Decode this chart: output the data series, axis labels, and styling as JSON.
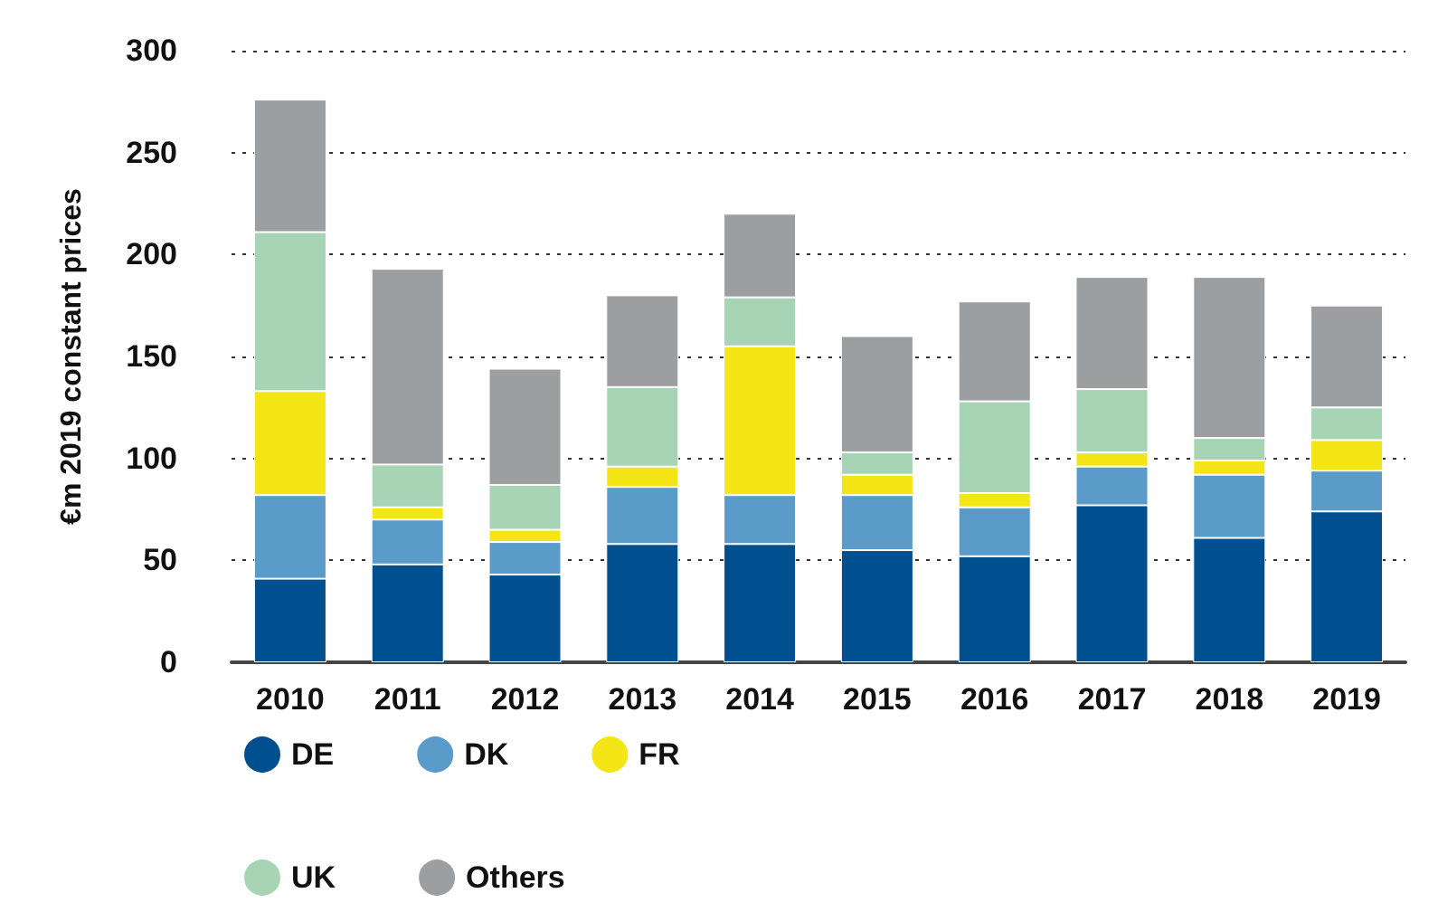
{
  "chart_data": {
    "type": "bar",
    "stacked": true,
    "ylabel": "€m 2019 constant prices",
    "categories": [
      "2010",
      "2011",
      "2012",
      "2013",
      "2014",
      "2015",
      "2016",
      "2017",
      "2018",
      "2019"
    ],
    "series": [
      {
        "name": "DE",
        "color": "#00508f",
        "values": [
          41,
          48,
          43,
          58,
          58,
          55,
          52,
          77,
          61,
          74
        ]
      },
      {
        "name": "DK",
        "color": "#5b9bca",
        "values": [
          41,
          22,
          16,
          28,
          24,
          27,
          24,
          19,
          31,
          20
        ]
      },
      {
        "name": "FR",
        "color": "#f4e616",
        "values": [
          51,
          6,
          6,
          10,
          73,
          10,
          7,
          7,
          7,
          15
        ]
      },
      {
        "name": "UK",
        "color": "#a7d4b4",
        "values": [
          78,
          21,
          22,
          39,
          24,
          11,
          45,
          31,
          11,
          16
        ]
      },
      {
        "name": "Others",
        "color": "#9d9ea0",
        "values": [
          65,
          96,
          57,
          45,
          41,
          57,
          49,
          55,
          79,
          50
        ]
      }
    ],
    "ylim": [
      0,
      300
    ],
    "yticks": [
      0,
      50,
      100,
      150,
      200,
      250,
      300
    ],
    "grid": "y",
    "legend": "bottom"
  }
}
